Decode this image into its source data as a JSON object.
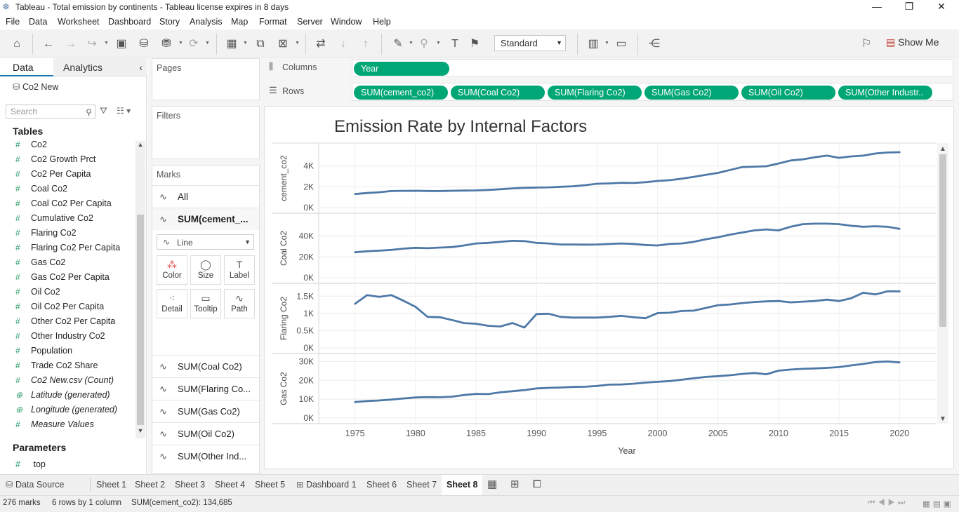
{
  "window": {
    "title": "Tableau - Total emission by continents - Tableau license expires in 8 days",
    "minimize": "—",
    "restore": "❐",
    "close": "✕"
  },
  "menu": [
    "File",
    "Data",
    "Worksheet",
    "Dashboard",
    "Story",
    "Analysis",
    "Map",
    "Format",
    "Server",
    "Window",
    "Help"
  ],
  "toolbar": {
    "fit_select": "Standard",
    "show_me": "Show Me"
  },
  "left_pane": {
    "tabs": {
      "data": "Data",
      "analytics": "Analytics"
    },
    "datasource": "Co2 New",
    "search_placeholder": "Search",
    "tables_heading": "Tables",
    "fields": [
      {
        "name": "Co2",
        "icon": "#",
        "italic": false
      },
      {
        "name": "Co2 Growth Prct",
        "icon": "#",
        "italic": false
      },
      {
        "name": "Co2 Per Capita",
        "icon": "#",
        "italic": false
      },
      {
        "name": "Coal Co2",
        "icon": "#",
        "italic": false
      },
      {
        "name": "Coal Co2 Per Capita",
        "icon": "#",
        "italic": false
      },
      {
        "name": "Cumulative Co2",
        "icon": "#",
        "italic": false
      },
      {
        "name": "Flaring Co2",
        "icon": "#",
        "italic": false
      },
      {
        "name": "Flaring Co2 Per Capita",
        "icon": "#",
        "italic": false
      },
      {
        "name": "Gas Co2",
        "icon": "#",
        "italic": false
      },
      {
        "name": "Gas Co2 Per Capita",
        "icon": "#",
        "italic": false
      },
      {
        "name": "Oil Co2",
        "icon": "#",
        "italic": false
      },
      {
        "name": "Oil Co2 Per Capita",
        "icon": "#",
        "italic": false
      },
      {
        "name": "Other Co2 Per Capita",
        "icon": "#",
        "italic": false
      },
      {
        "name": "Other Industry Co2",
        "icon": "#",
        "italic": false
      },
      {
        "name": "Population",
        "icon": "#",
        "italic": false
      },
      {
        "name": "Trade Co2 Share",
        "icon": "#",
        "italic": false
      },
      {
        "name": "Co2 New.csv (Count)",
        "icon": "#",
        "italic": true
      },
      {
        "name": "Latitude (generated)",
        "icon": "⊕",
        "italic": true
      },
      {
        "name": "Longitude (generated)",
        "icon": "⊕",
        "italic": true
      },
      {
        "name": "Measure Values",
        "icon": "#",
        "italic": true
      }
    ],
    "parameters_heading": "Parameters",
    "parameter": "top"
  },
  "cards": {
    "pages": "Pages",
    "filters": "Filters",
    "marks": "Marks",
    "marks_all": "All",
    "marks_current": "SUM(cement_...",
    "mark_type": "Line",
    "buttons": [
      "Color",
      "Size",
      "Label",
      "Detail",
      "Tooltip",
      "Path"
    ],
    "other_marks": [
      "SUM(Coal Co2)",
      "SUM(Flaring Co...",
      "SUM(Gas Co2)",
      "SUM(Oil Co2)",
      "SUM(Other Ind..."
    ]
  },
  "shelves": {
    "columns_label": "Columns",
    "rows_label": "Rows",
    "columns_pills": [
      "Year"
    ],
    "rows_pills": [
      "SUM(cement_co2)",
      "SUM(Coal Co2)",
      "SUM(Flaring Co2)",
      "SUM(Gas Co2)",
      "SUM(Oil Co2)",
      "SUM(Other Industr.."
    ]
  },
  "tabs": [
    "Data Source",
    "Sheet 1",
    "Sheet 2",
    "Sheet 3",
    "Sheet 4",
    "Sheet 5",
    "Dashboard 1",
    "Sheet 6",
    "Sheet 7",
    "Sheet 8"
  ],
  "active_tab": "Sheet 8",
  "status": {
    "marks": "276 marks",
    "rows": "6 rows by 1 column",
    "sum": "SUM(cement_co2): 134,685"
  },
  "colors": {
    "accent_pill": "#00a676",
    "line": "#4e79a7"
  },
  "chart_data": {
    "type": "line",
    "title": "Emission Rate by Internal Factors",
    "xlabel": "Year",
    "x_ticks": [
      1975,
      1980,
      1985,
      1990,
      1995,
      2000,
      2005,
      2010,
      2015,
      2020
    ],
    "x": [
      1975,
      1976,
      1977,
      1978,
      1979,
      1980,
      1981,
      1982,
      1983,
      1984,
      1985,
      1986,
      1987,
      1988,
      1989,
      1990,
      1991,
      1992,
      1993,
      1994,
      1995,
      1996,
      1997,
      1998,
      1999,
      2000,
      2001,
      2002,
      2003,
      2004,
      2005,
      2006,
      2007,
      2008,
      2009,
      2010,
      2011,
      2012,
      2013,
      2014,
      2015,
      2016,
      2017,
      2018,
      2019,
      2020
    ],
    "grid": true,
    "panels": [
      {
        "ylabel": "cement_co2",
        "ylim": [
          0,
          5800
        ],
        "ticks": [
          {
            "v": 0,
            "t": "0K"
          },
          {
            "v": 2000,
            "t": "2K"
          },
          {
            "v": 4000,
            "t": "4K"
          }
        ],
        "values": [
          1310,
          1400,
          1480,
          1590,
          1610,
          1620,
          1600,
          1590,
          1620,
          1640,
          1650,
          1700,
          1770,
          1850,
          1900,
          1930,
          1950,
          2000,
          2050,
          2160,
          2290,
          2330,
          2390,
          2370,
          2440,
          2560,
          2640,
          2780,
          2960,
          3150,
          3340,
          3620,
          3900,
          3940,
          3980,
          4240,
          4530,
          4640,
          4840,
          5000,
          4790,
          4920,
          5000,
          5200,
          5300,
          5330
        ]
      },
      {
        "ylabel": "Coal Co2",
        "ylim": [
          0,
          58000
        ],
        "ticks": [
          {
            "v": 0,
            "t": "0K"
          },
          {
            "v": 20000,
            "t": "20K"
          },
          {
            "v": 40000,
            "t": "40K"
          }
        ],
        "values": [
          24500,
          25500,
          26000,
          26800,
          28000,
          28800,
          28400,
          29000,
          29500,
          31000,
          33000,
          33500,
          34500,
          35500,
          35200,
          33500,
          33000,
          32000,
          32000,
          31800,
          32000,
          32500,
          33000,
          32500,
          31500,
          31000,
          32500,
          33000,
          34500,
          37000,
          39000,
          41500,
          43500,
          45500,
          46500,
          45500,
          49000,
          51500,
          52000,
          52000,
          51500,
          50000,
          49000,
          49500,
          49000,
          47000
        ]
      },
      {
        "ylabel": "Flaring Co2",
        "ylim": [
          0,
          1750
        ],
        "ticks": [
          {
            "v": 0,
            "t": "0K"
          },
          {
            "v": 500,
            "t": "0.5K"
          },
          {
            "v": 1000,
            "t": "1K"
          },
          {
            "v": 1500,
            "t": "1.5K"
          }
        ],
        "values": [
          1280,
          1530,
          1480,
          1530,
          1370,
          1190,
          900,
          890,
          810,
          720,
          700,
          640,
          620,
          720,
          590,
          980,
          990,
          900,
          880,
          880,
          880,
          900,
          930,
          890,
          860,
          1010,
          1020,
          1070,
          1080,
          1160,
          1240,
          1260,
          1300,
          1330,
          1350,
          1360,
          1320,
          1340,
          1360,
          1400,
          1360,
          1440,
          1600,
          1550,
          1640,
          1640
        ]
      },
      {
        "ylabel": "Gas Co2",
        "ylim": [
          0,
          32000
        ],
        "ticks": [
          {
            "v": 0,
            "t": "0K"
          },
          {
            "v": 10000,
            "t": "10K"
          },
          {
            "v": 20000,
            "t": "20K"
          },
          {
            "v": 30000,
            "t": "30K"
          }
        ],
        "values": [
          8500,
          9000,
          9300,
          9800,
          10400,
          10900,
          11100,
          11000,
          11300,
          12200,
          12800,
          12700,
          13600,
          14200,
          14800,
          15700,
          16000,
          16200,
          16500,
          16600,
          17000,
          17700,
          17800,
          18200,
          18800,
          19200,
          19600,
          20300,
          21100,
          21800,
          22200,
          22700,
          23400,
          23900,
          23200,
          25100,
          25700,
          26100,
          26300,
          26600,
          27000,
          27900,
          28700,
          29700,
          30000,
          29500
        ]
      }
    ]
  }
}
